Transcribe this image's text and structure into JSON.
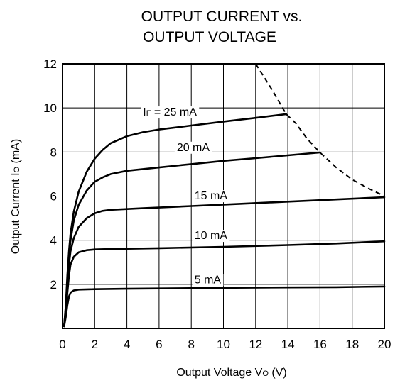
{
  "chart_data": {
    "type": "line",
    "title_line1": "OUTPUT CURRENT vs.",
    "title_line2": "OUTPUT VOLTAGE",
    "xlabel": {
      "main": "Output Voltage  V",
      "sub": "O",
      "unit": " (V)"
    },
    "ylabel": {
      "main": "Output Current  I",
      "sub": "O",
      "unit": " (mA)"
    },
    "xlim": [
      0,
      20
    ],
    "ylim": [
      0,
      12
    ],
    "x_ticks": [
      0,
      2,
      4,
      6,
      8,
      10,
      12,
      14,
      16,
      18,
      20
    ],
    "y_ticks": [
      2,
      4,
      6,
      8,
      10,
      12
    ],
    "grid": true,
    "series": [
      {
        "name": "5 mA",
        "label_prefix": "",
        "label_sub": "",
        "label_value": "5 mA",
        "label_at": [
          8.2,
          2.05
        ],
        "points": [
          [
            0.1,
            0.1
          ],
          [
            0.2,
            0.5
          ],
          [
            0.3,
            1.05
          ],
          [
            0.4,
            1.45
          ],
          [
            0.5,
            1.62
          ],
          [
            0.7,
            1.72
          ],
          [
            1.0,
            1.76
          ],
          [
            2,
            1.78
          ],
          [
            4,
            1.8
          ],
          [
            6,
            1.81
          ],
          [
            10,
            1.84
          ],
          [
            14,
            1.86
          ],
          [
            17,
            1.87
          ],
          [
            20,
            1.9
          ]
        ]
      },
      {
        "name": "10 mA",
        "label_prefix": "",
        "label_sub": "",
        "label_value": "10 mA",
        "label_at": [
          8.2,
          4.05
        ],
        "points": [
          [
            0.1,
            0.1
          ],
          [
            0.2,
            0.7
          ],
          [
            0.3,
            1.6
          ],
          [
            0.4,
            2.4
          ],
          [
            0.5,
            2.9
          ],
          [
            0.7,
            3.25
          ],
          [
            1.0,
            3.45
          ],
          [
            1.5,
            3.55
          ],
          [
            2,
            3.58
          ],
          [
            3,
            3.6
          ],
          [
            6,
            3.64
          ],
          [
            10,
            3.7
          ],
          [
            14,
            3.78
          ],
          [
            17,
            3.85
          ],
          [
            20,
            3.95
          ]
        ]
      },
      {
        "name": "15 mA",
        "label_prefix": "",
        "label_sub": "",
        "label_value": "15 mA",
        "label_at": [
          8.2,
          5.85
        ],
        "points": [
          [
            0.1,
            0.1
          ],
          [
            0.2,
            0.8
          ],
          [
            0.3,
            1.9
          ],
          [
            0.4,
            2.9
          ],
          [
            0.5,
            3.5
          ],
          [
            0.7,
            4.1
          ],
          [
            1.0,
            4.6
          ],
          [
            1.5,
            5.0
          ],
          [
            2.0,
            5.22
          ],
          [
            2.5,
            5.33
          ],
          [
            3,
            5.38
          ],
          [
            5,
            5.45
          ],
          [
            8,
            5.55
          ],
          [
            11,
            5.65
          ],
          [
            14,
            5.75
          ],
          [
            17,
            5.85
          ],
          [
            20,
            5.95
          ]
        ]
      },
      {
        "name": "20 mA",
        "label_prefix": "",
        "label_sub": "",
        "label_value": "20 mA",
        "label_at": [
          7.1,
          8.05
        ],
        "points": [
          [
            0.1,
            0.1
          ],
          [
            0.2,
            0.9
          ],
          [
            0.3,
            2.1
          ],
          [
            0.4,
            3.3
          ],
          [
            0.5,
            4.0
          ],
          [
            0.7,
            4.9
          ],
          [
            1.0,
            5.6
          ],
          [
            1.5,
            6.25
          ],
          [
            2.0,
            6.65
          ],
          [
            2.5,
            6.85
          ],
          [
            3,
            7.0
          ],
          [
            4,
            7.15
          ],
          [
            6,
            7.3
          ],
          [
            8,
            7.45
          ],
          [
            10,
            7.6
          ],
          [
            12,
            7.72
          ],
          [
            14,
            7.85
          ],
          [
            16,
            7.98
          ]
        ]
      },
      {
        "name": "25 mA",
        "label_prefix": "I",
        "label_sub": "F",
        "label_value": " = 25 mA",
        "label_at": [
          5.0,
          9.65
        ],
        "points": [
          [
            0.1,
            0.1
          ],
          [
            0.2,
            1.0
          ],
          [
            0.3,
            2.4
          ],
          [
            0.4,
            3.5
          ],
          [
            0.5,
            4.3
          ],
          [
            0.7,
            5.3
          ],
          [
            1.0,
            6.2
          ],
          [
            1.5,
            7.1
          ],
          [
            2.0,
            7.7
          ],
          [
            2.5,
            8.1
          ],
          [
            3,
            8.4
          ],
          [
            4,
            8.72
          ],
          [
            5,
            8.9
          ],
          [
            6,
            9.02
          ],
          [
            8,
            9.2
          ],
          [
            10,
            9.38
          ],
          [
            12,
            9.55
          ],
          [
            13.9,
            9.72
          ]
        ]
      }
    ],
    "boundary": {
      "style": "dashed",
      "points": [
        [
          12,
          12
        ],
        [
          13,
          10.85
        ],
        [
          13.9,
          9.72
        ],
        [
          14.5,
          9.3
        ],
        [
          15.2,
          8.6
        ],
        [
          16,
          7.98
        ],
        [
          17,
          7.3
        ],
        [
          18,
          6.75
        ],
        [
          19,
          6.35
        ],
        [
          20,
          6.0
        ]
      ]
    }
  }
}
